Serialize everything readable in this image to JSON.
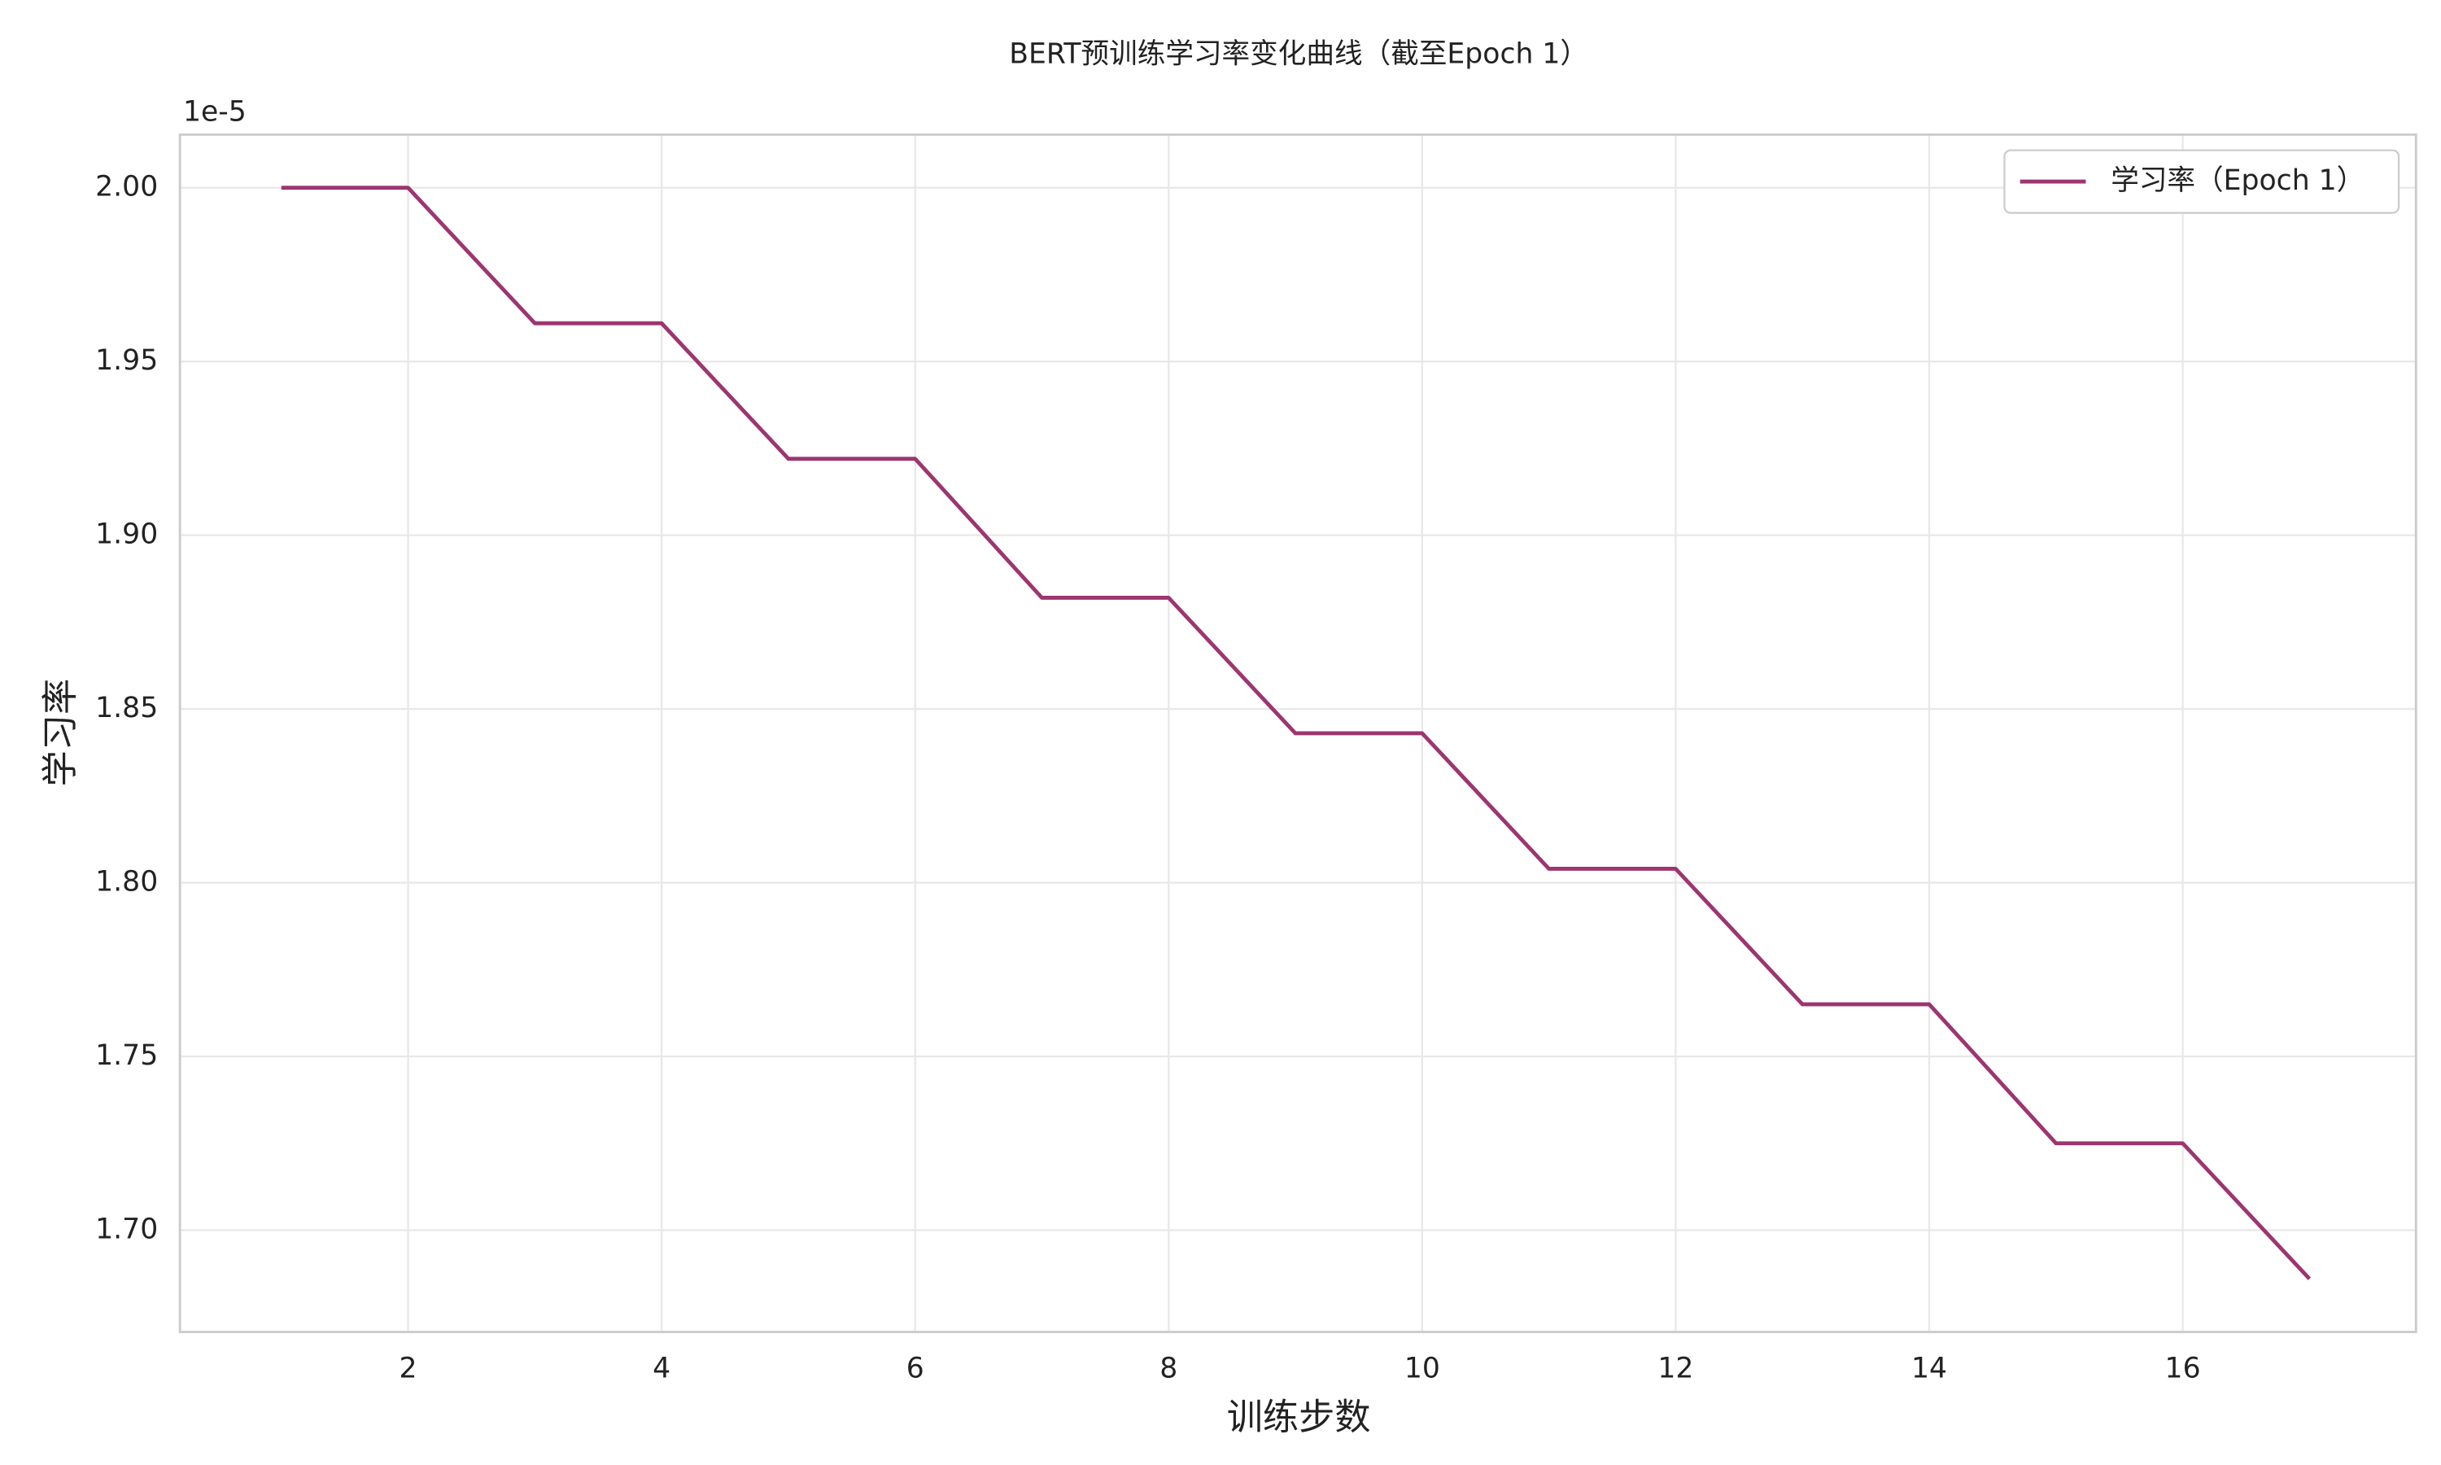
{
  "chart_data": {
    "type": "line",
    "title": "BERT预训练学习率变化曲线（截至Epoch 1）",
    "x_label": "训练步数",
    "y_label": "学习率",
    "y_offset_label": "1e-5",
    "x": [
      1,
      2,
      3,
      4,
      5,
      6,
      7,
      8,
      9,
      10,
      11,
      12,
      13,
      14,
      15,
      16,
      17
    ],
    "series": [
      {
        "name": "学习率（Epoch 1）",
        "color": "#9c3670",
        "values": [
          2.0,
          2.0,
          1.961,
          1.961,
          1.922,
          1.922,
          1.882,
          1.882,
          1.843,
          1.843,
          1.804,
          1.804,
          1.765,
          1.765,
          1.725,
          1.725,
          1.686
        ]
      }
    ],
    "xlim": [
      0.2,
      17.84
    ],
    "ylim": [
      1.6707,
      2.0153
    ],
    "xticks": [
      2,
      4,
      6,
      8,
      10,
      12,
      14,
      16
    ],
    "yticks": [
      {
        "value": 1.7,
        "label": "1.70"
      },
      {
        "value": 1.75,
        "label": "1.75"
      },
      {
        "value": 1.8,
        "label": "1.80"
      },
      {
        "value": 1.85,
        "label": "1.85"
      },
      {
        "value": 1.9,
        "label": "1.90"
      },
      {
        "value": 1.95,
        "label": "1.95"
      },
      {
        "value": 2.0,
        "label": "2.00"
      }
    ],
    "grid": true,
    "legend": "upper right"
  }
}
